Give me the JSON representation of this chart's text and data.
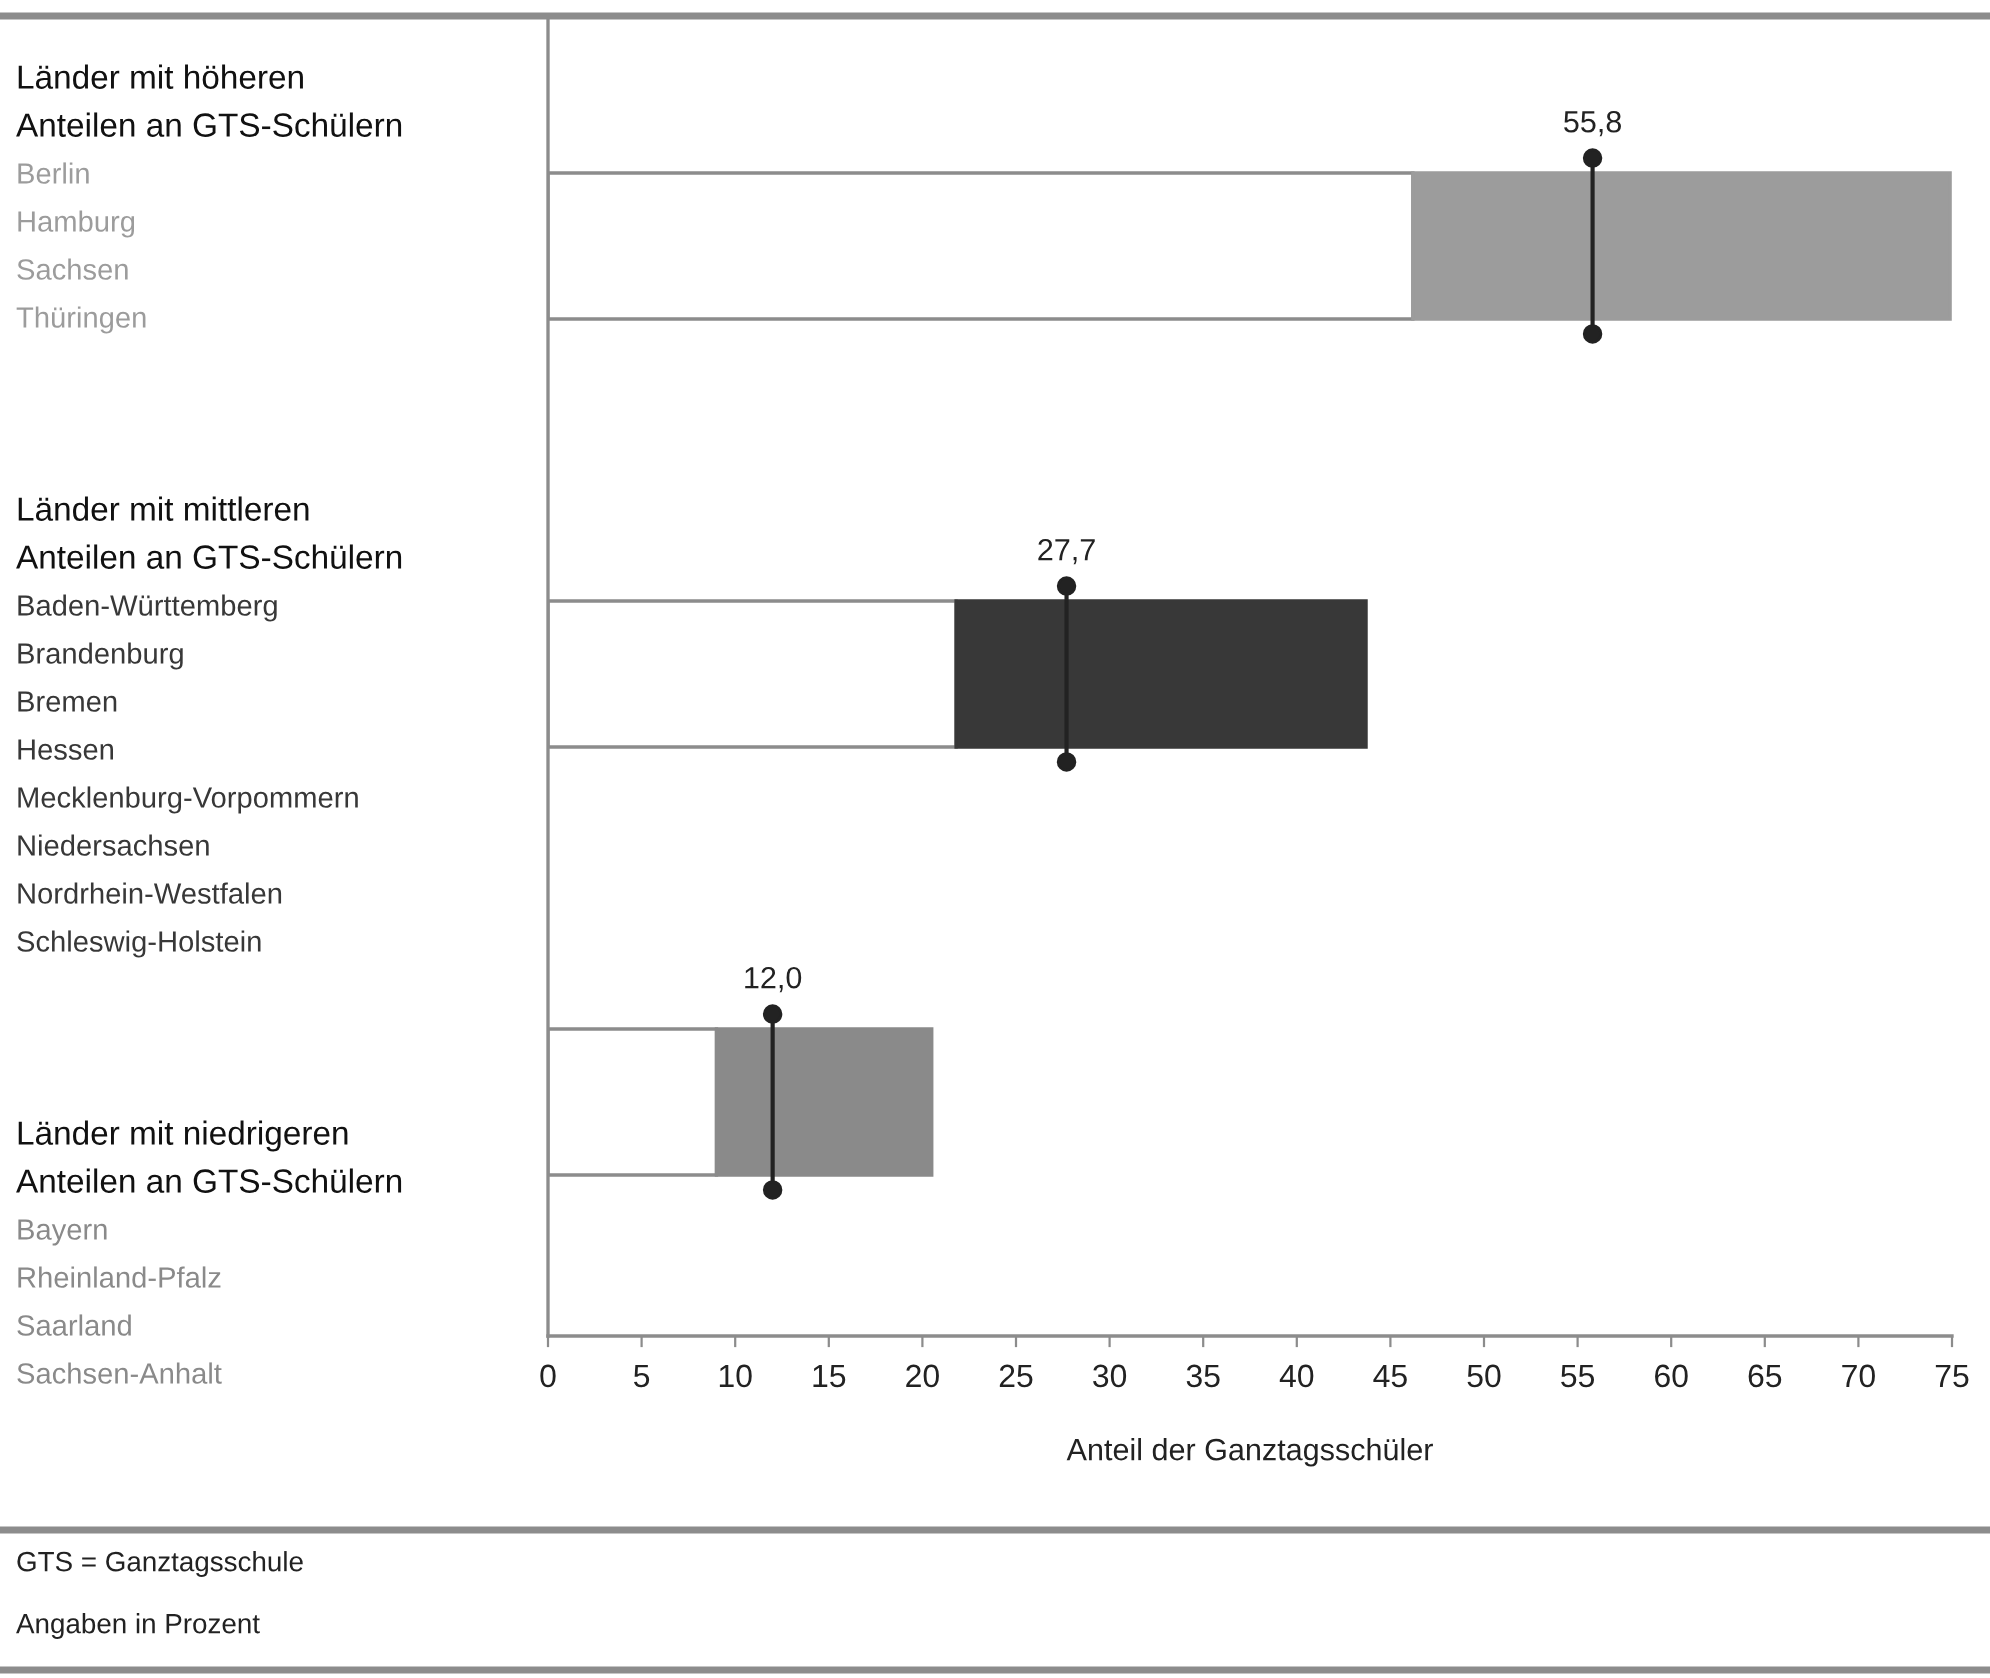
{
  "chart_data": {
    "type": "bar",
    "orientation": "horizontal",
    "stacked": true,
    "categories": [
      "Länder mit höheren\nAnteilen an GTS-Schülern\nBerlin\nHamburg\nSachsen\nThüringen",
      "Länder mit mittleren\nAnteilen an GTS-Schülern\nBaden-Württemberg\nBrandenburg\nBremen\nHessen\nMecklenburg-Vorpommern\nNiedersachsen\nNordrhein-Westfalen\nSchleswig-Holstein",
      "Länder mit niedrigeren\nAnteilen an GTS-Schülern\nBayern\nRheinland-Pfalz\nSaarland\nSachsen-Anhalt"
    ],
    "series": [
      {
        "color": "#ffffff",
        "values": [
          46.2,
          21.8,
          9.0
        ]
      },
      {
        "colors": [
          "#9c9c9c",
          "#383838",
          "#8a8a8a"
        ],
        "values": [
          28.7,
          21.9,
          11.5
        ]
      },
      {
        "type": "scatter",
        "marker": "circle",
        "color": "#222222",
        "values": [
          55.8,
          27.7,
          12.0
        ],
        "value_labels": [
          "55,8",
          "27,7",
          "12,0"
        ]
      }
    ],
    "xlabel": "Anteil der Ganztagsschüler",
    "xlim": [
      0,
      75
    ],
    "xticks": [
      0,
      5,
      10,
      15,
      20,
      25,
      30,
      35,
      40,
      45,
      50,
      55,
      60,
      65,
      70,
      75
    ],
    "grid": false,
    "legend": false,
    "annotations": [
      "GTS = Ganztagsschule",
      "Angaben in Prozent"
    ]
  }
}
